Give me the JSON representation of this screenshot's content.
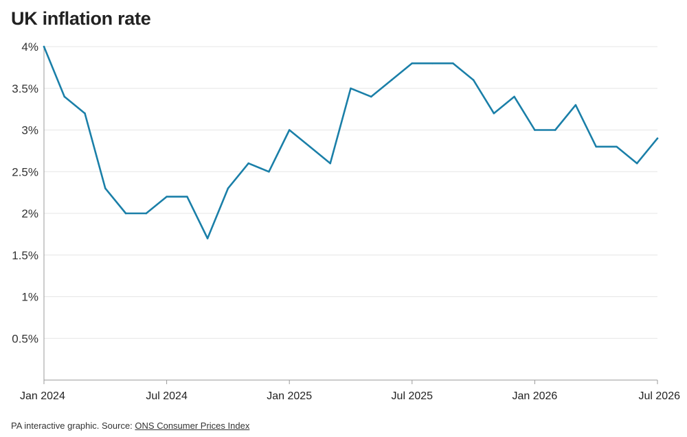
{
  "title": "UK inflation rate",
  "footer": {
    "text": "PA interactive graphic. Source: ",
    "source_link": "ONS Consumer Prices Index"
  },
  "colors": {
    "line": "#1a7fa8",
    "grid": "#e6e6e6",
    "axis": "#999999",
    "text": "#222222"
  },
  "chart_data": {
    "type": "line",
    "title": "UK inflation rate",
    "xlabel": "",
    "ylabel": "",
    "ylim": [
      0,
      4
    ],
    "grid": true,
    "legend": "none",
    "y_ticks": [
      {
        "value": 0.5,
        "label": "0.5%"
      },
      {
        "value": 1,
        "label": "1%"
      },
      {
        "value": 1.5,
        "label": "1.5%"
      },
      {
        "value": 2,
        "label": "2%"
      },
      {
        "value": 2.5,
        "label": "2.5%"
      },
      {
        "value": 3,
        "label": "3%"
      },
      {
        "value": 3.5,
        "label": "3.5%"
      },
      {
        "value": 4,
        "label": "4%"
      }
    ],
    "x_ticks": [
      {
        "date": "2024-01",
        "label": "Jan 2024"
      },
      {
        "date": "2024-07",
        "label": "Jul 2024"
      },
      {
        "date": "2025-01",
        "label": "Jan 2025"
      },
      {
        "date": "2025-07",
        "label": "Jul 2025"
      },
      {
        "date": "2026-01",
        "label": "Jan 2026"
      },
      {
        "date": "2026-07",
        "label": "Jul 2026"
      }
    ],
    "series": [
      {
        "x": [
          "2024-01",
          "2024-02",
          "2024-03",
          "2024-04",
          "2024-05",
          "2024-06",
          "2024-07",
          "2024-08",
          "2024-09",
          "2024-10",
          "2024-11",
          "2024-12",
          "2025-01",
          "2025-02",
          "2025-03",
          "2025-04",
          "2025-05",
          "2025-06",
          "2025-07",
          "2025-08",
          "2025-09",
          "2025-10",
          "2025-11",
          "2025-12",
          "2026-01",
          "2026-02",
          "2026-03",
          "2026-04",
          "2026-05",
          "2026-06",
          "2026-07"
        ],
        "values": [
          4.0,
          3.4,
          3.2,
          2.3,
          2.0,
          2.0,
          2.2,
          2.2,
          1.7,
          2.3,
          2.6,
          2.5,
          3.0,
          2.8,
          2.6,
          3.5,
          3.4,
          3.6,
          3.8,
          3.8,
          3.8,
          3.6,
          3.2,
          3.4,
          3.0,
          3.0,
          3.3,
          2.8,
          2.8,
          2.6,
          2.9
        ]
      }
    ]
  }
}
